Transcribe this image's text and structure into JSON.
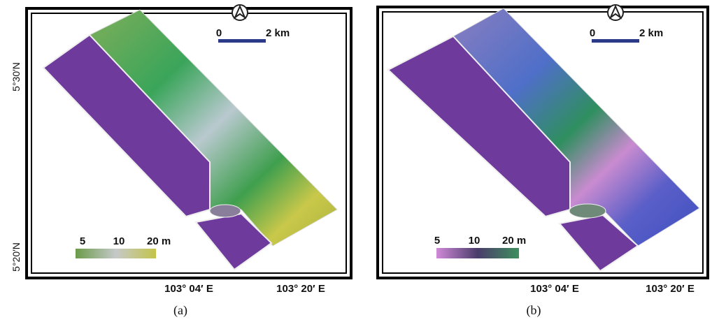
{
  "latitude_labels": [
    "5°30′N",
    "5°20′N"
  ],
  "panels": [
    {
      "caption": "(a)",
      "scale_bar": {
        "start": "0",
        "end": "2 km"
      },
      "legend": [
        "5",
        "10",
        "20 m"
      ],
      "longitude_labels": [
        "103° 04′ E",
        "103° 20′ E"
      ]
    },
    {
      "caption": "(b)",
      "scale_bar": {
        "start": "0",
        "end": "2 km"
      },
      "legend": [
        "5",
        "10",
        "20 m"
      ],
      "longitude_labels": [
        "103° 04′ E",
        "103° 20′ E"
      ]
    }
  ]
}
